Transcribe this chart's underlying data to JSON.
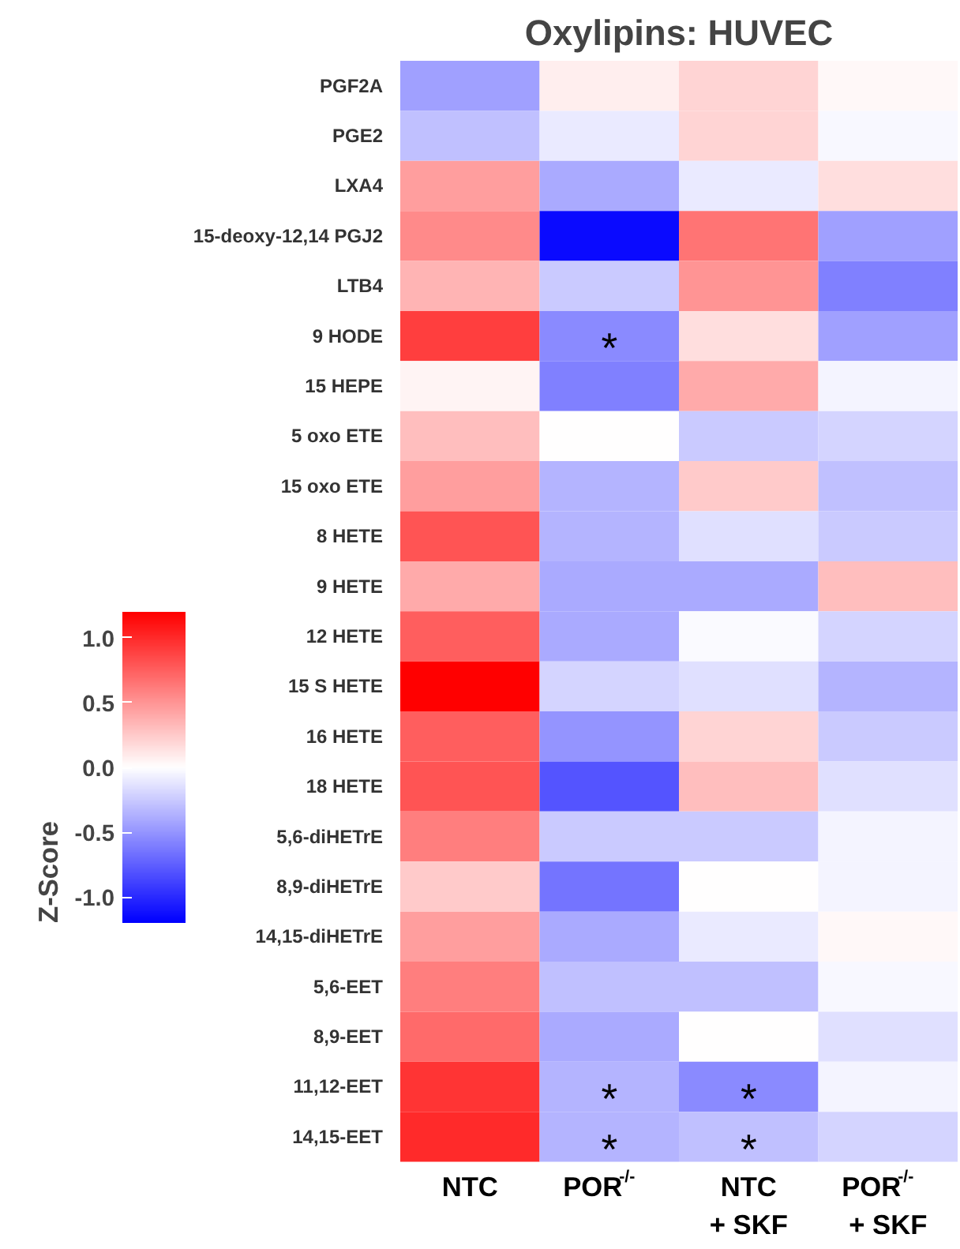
{
  "chart_data": {
    "type": "heatmap",
    "title": "Oxylipins: HUVEC",
    "clabel": "Z-Score",
    "categories": [
      "NTC",
      "POR$^{-/-}$",
      "NTC\n+ SKF",
      "POR$^{-/-}$\n+ SKF"
    ],
    "y_categories": [
      "PGF2A",
      "PGE2",
      "LXA4",
      "15-deoxy-12,14 PGJ2",
      "LTB4",
      "9 HODE",
      "15 HEPE",
      "5 oxo ETE",
      "15 oxo ETE",
      "8 HETE",
      "9 HETE",
      "12 HETE",
      "15 S HETE",
      "16 HETE",
      "18 HETE",
      "5,6-diHETrE",
      "8,9-diHETrE",
      "14,15-diHETrE",
      "5,6-EET",
      "8,9-EET",
      "11,12-EET",
      "14,15-EET"
    ],
    "cells": [
      [
        -0.45,
        0.08,
        0.2,
        0.03
      ],
      [
        -0.3,
        -0.1,
        0.2,
        -0.03
      ],
      [
        0.45,
        -0.4,
        -0.1,
        0.15
      ],
      [
        0.55,
        -1.15,
        0.65,
        -0.45
      ],
      [
        0.35,
        -0.25,
        0.5,
        -0.6
      ],
      [
        0.9,
        -0.55,
        0.15,
        -0.45
      ],
      [
        0.05,
        -0.6,
        0.4,
        -0.05
      ],
      [
        0.3,
        0.0,
        -0.25,
        -0.2
      ],
      [
        0.45,
        -0.35,
        0.25,
        -0.3
      ],
      [
        0.8,
        -0.35,
        -0.15,
        -0.25
      ],
      [
        0.4,
        -0.4,
        -0.4,
        0.3
      ],
      [
        0.75,
        -0.4,
        -0.02,
        -0.2
      ],
      [
        1.2,
        -0.2,
        -0.15,
        -0.35
      ],
      [
        0.75,
        -0.5,
        0.2,
        -0.25
      ],
      [
        0.8,
        -0.8,
        0.3,
        -0.15
      ],
      [
        0.6,
        -0.25,
        -0.25,
        -0.05
      ],
      [
        0.25,
        -0.65,
        0.0,
        -0.05
      ],
      [
        0.45,
        -0.4,
        -0.1,
        0.03
      ],
      [
        0.6,
        -0.3,
        -0.3,
        -0.03
      ],
      [
        0.7,
        -0.4,
        0.0,
        -0.15
      ],
      [
        0.95,
        -0.35,
        -0.55,
        -0.05
      ],
      [
        1.0,
        -0.35,
        -0.3,
        -0.2
      ]
    ],
    "cell_labels": [
      [
        null,
        null,
        null,
        null
      ],
      [
        null,
        null,
        null,
        null
      ],
      [
        null,
        null,
        null,
        null
      ],
      [
        null,
        null,
        null,
        null
      ],
      [
        null,
        null,
        null,
        null
      ],
      [
        null,
        "*",
        null,
        null
      ],
      [
        null,
        null,
        null,
        null
      ],
      [
        null,
        null,
        null,
        null
      ],
      [
        null,
        null,
        null,
        null
      ],
      [
        null,
        null,
        null,
        null
      ],
      [
        null,
        null,
        null,
        null
      ],
      [
        null,
        null,
        null,
        null
      ],
      [
        null,
        null,
        null,
        null
      ],
      [
        null,
        null,
        null,
        null
      ],
      [
        null,
        null,
        null,
        null
      ],
      [
        null,
        null,
        null,
        null
      ],
      [
        null,
        null,
        null,
        null
      ],
      [
        null,
        null,
        null,
        null
      ],
      [
        null,
        null,
        null,
        null
      ],
      [
        null,
        null,
        null,
        null
      ],
      [
        null,
        "*",
        "*",
        null
      ],
      [
        null,
        "*",
        "*",
        null
      ]
    ],
    "clim": [
      -1.2,
      1.2
    ],
    "cticks": [
      {
        "value": -1.0,
        "label": "-1.0"
      },
      {
        "value": -0.5,
        "label": "-0.5"
      },
      {
        "value": 0.0,
        "label": "0.0"
      },
      {
        "value": 0.5,
        "label": "0.5"
      },
      {
        "value": 1.0,
        "label": "1.0"
      }
    ]
  }
}
